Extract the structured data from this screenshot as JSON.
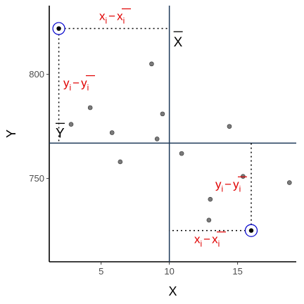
{
  "chart_data": {
    "type": "scatter",
    "title": "",
    "xlabel": "X",
    "ylabel": "Y",
    "xlim": [
      1.2,
      19.3
    ],
    "ylim": [
      710,
      833
    ],
    "x_ticks": [
      5,
      10,
      15
    ],
    "y_ticks": [
      750,
      800
    ],
    "x_tick_labels": [
      "5",
      "10",
      "15"
    ],
    "y_tick_labels": [
      "750",
      "800"
    ],
    "grid": false,
    "points": [
      {
        "x": 1.9,
        "y": 822
      },
      {
        "x": 2.8,
        "y": 776
      },
      {
        "x": 4.2,
        "y": 784
      },
      {
        "x": 5.8,
        "y": 772
      },
      {
        "x": 6.4,
        "y": 758
      },
      {
        "x": 8.7,
        "y": 805
      },
      {
        "x": 9.1,
        "y": 769
      },
      {
        "x": 9.5,
        "y": 781
      },
      {
        "x": 10.9,
        "y": 762
      },
      {
        "x": 12.9,
        "y": 730
      },
      {
        "x": 13.0,
        "y": 740
      },
      {
        "x": 14.4,
        "y": 775
      },
      {
        "x": 15.4,
        "y": 751
      },
      {
        "x": 18.8,
        "y": 748
      },
      {
        "x": 16.0,
        "y": 725
      }
    ],
    "highlighted_points": [
      {
        "x": 1.9,
        "y": 822
      },
      {
        "x": 16.0,
        "y": 725
      }
    ],
    "mean_x": 10.0,
    "mean_y": 767,
    "mean_x_label": "X",
    "mean_y_label": "Y",
    "colors": {
      "points": "#7a7a7a",
      "mean_lines": "#1f3a5a",
      "annotations": "#e00000",
      "highlight_ring": "#0000cc"
    },
    "annotations": {
      "top_x_dev": {
        "base": "x",
        "sub": "i",
        "minus": "−",
        "bar": "x",
        "bar_sub": "i"
      },
      "left_y_dev": {
        "base": "y",
        "sub": "i",
        "minus": "−",
        "bar": "y",
        "bar_sub": "i"
      },
      "right_y_dev": {
        "base": "y",
        "sub": "i",
        "minus": "−",
        "bar": "y",
        "bar_sub": "i"
      },
      "bottom_x_dev": {
        "base": "x",
        "sub": "i",
        "minus": "−",
        "bar": "x",
        "bar_sub": "i"
      }
    }
  }
}
